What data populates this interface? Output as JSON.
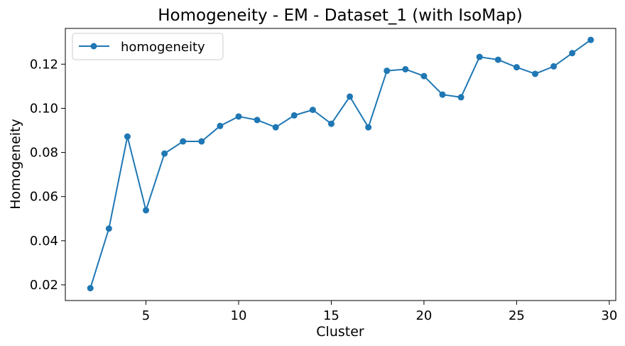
{
  "chart_data": {
    "type": "line",
    "title": "Homogeneity - EM - Dataset_1 (with IsoMap)",
    "xlabel": "Cluster",
    "ylabel": "Homogeneity",
    "xlim": [
      0.65,
      30.35
    ],
    "ylim": [
      0.0129,
      0.1362
    ],
    "xticks": [
      5,
      10,
      15,
      20,
      25,
      30
    ],
    "yticks": [
      0.02,
      0.04,
      0.06,
      0.08,
      0.1,
      0.12
    ],
    "ytick_labels": [
      "0.02",
      "0.04",
      "0.06",
      "0.08",
      "0.10",
      "0.12"
    ],
    "grid": false,
    "legend_position": "top-left",
    "series": [
      {
        "name": "homogeneity",
        "color": "#1f77b4",
        "marker": "circle",
        "x": [
          2,
          3,
          4,
          5,
          6,
          7,
          8,
          9,
          10,
          11,
          12,
          13,
          14,
          15,
          16,
          17,
          18,
          19,
          20,
          21,
          22,
          23,
          24,
          25,
          26,
          27,
          28,
          29
        ],
        "y": [
          0.0185,
          0.0455,
          0.0872,
          0.0538,
          0.0795,
          0.085,
          0.085,
          0.092,
          0.0963,
          0.0947,
          0.0914,
          0.0968,
          0.0993,
          0.093,
          0.1053,
          0.0914,
          0.117,
          0.1177,
          0.1146,
          0.1062,
          0.105,
          0.1233,
          0.122,
          0.1186,
          0.1156,
          0.119,
          0.125,
          0.131
        ]
      }
    ]
  }
}
